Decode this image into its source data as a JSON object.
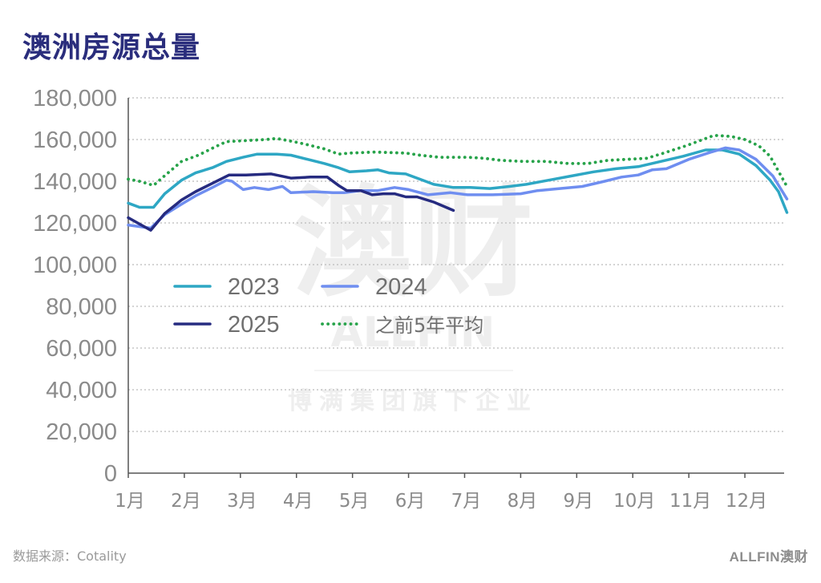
{
  "title": "澳洲房源总量",
  "source": "数据来源：Cotality",
  "logo": "ALLFIN澳财",
  "watermark": {
    "main": "澳财",
    "brand": "ALLFIN",
    "tagline": "博满集团旗下企业"
  },
  "colors": {
    "title": "#2a2d7c",
    "s2023": "#2ea7c4",
    "s2024": "#6f8ef0",
    "s2025": "#262b80",
    "avg5": "#27a34a",
    "grid": "#bbbbbb"
  },
  "chart_data": {
    "type": "line",
    "title": "澳洲房源总量",
    "ylim": [
      0,
      180000
    ],
    "yticks": [
      0,
      20000,
      40000,
      60000,
      80000,
      100000,
      120000,
      140000,
      160000,
      180000
    ],
    "ytick_labels": [
      "0",
      "20,000",
      "40,000",
      "60,000",
      "80,000",
      "100,000",
      "120,000",
      "140,000",
      "160,000",
      "180,000"
    ],
    "x_range": [
      0,
      11.7
    ],
    "xticks": [
      0,
      1,
      2,
      3,
      4,
      5,
      6,
      7,
      8,
      9,
      10,
      11
    ],
    "xtick_labels": [
      "1月",
      "2月",
      "3月",
      "4月",
      "5月",
      "6月",
      "7月",
      "8月",
      "9月",
      "10月",
      "11月",
      "12月"
    ],
    "grid": "horizontal dotted",
    "legend_position": "center-left",
    "series": [
      {
        "name": "2023",
        "style": "solid",
        "color": "#2ea7c4",
        "points": [
          [
            0,
            129500
          ],
          [
            0.2,
            127500
          ],
          [
            0.45,
            127500
          ],
          [
            0.65,
            134000
          ],
          [
            0.95,
            140500
          ],
          [
            1.2,
            144000
          ],
          [
            1.5,
            146500
          ],
          [
            1.75,
            149500
          ],
          [
            2.05,
            151500
          ],
          [
            2.3,
            153000
          ],
          [
            2.65,
            153000
          ],
          [
            2.9,
            152500
          ],
          [
            3.2,
            150500
          ],
          [
            3.5,
            148500
          ],
          [
            3.75,
            146500
          ],
          [
            3.95,
            144500
          ],
          [
            4.25,
            145000
          ],
          [
            4.45,
            145500
          ],
          [
            4.65,
            144000
          ],
          [
            4.95,
            143500
          ],
          [
            5.2,
            141000
          ],
          [
            5.45,
            138500
          ],
          [
            5.8,
            137000
          ],
          [
            6.1,
            137000
          ],
          [
            6.45,
            136500
          ],
          [
            6.8,
            137500
          ],
          [
            7.1,
            138500
          ],
          [
            7.5,
            140500
          ],
          [
            7.9,
            142500
          ],
          [
            8.3,
            144500
          ],
          [
            8.7,
            146000
          ],
          [
            9.1,
            147000
          ],
          [
            9.5,
            149500
          ],
          [
            9.9,
            152000
          ],
          [
            10.3,
            155000
          ],
          [
            10.6,
            155000
          ],
          [
            10.9,
            153000
          ],
          [
            11.2,
            147500
          ],
          [
            11.45,
            140500
          ],
          [
            11.6,
            135000
          ],
          [
            11.75,
            125000
          ]
        ]
      },
      {
        "name": "2024",
        "style": "solid",
        "color": "#6f8ef0",
        "points": [
          [
            0,
            119000
          ],
          [
            0.4,
            117500
          ],
          [
            0.65,
            124000
          ],
          [
            0.95,
            129000
          ],
          [
            1.2,
            133000
          ],
          [
            1.5,
            137000
          ],
          [
            1.75,
            140500
          ],
          [
            1.85,
            140000
          ],
          [
            2.05,
            136000
          ],
          [
            2.25,
            137000
          ],
          [
            2.5,
            136000
          ],
          [
            2.75,
            137500
          ],
          [
            2.9,
            134500
          ],
          [
            3.3,
            135000
          ],
          [
            3.65,
            134500
          ],
          [
            3.85,
            134500
          ],
          [
            4.15,
            135500
          ],
          [
            4.45,
            135500
          ],
          [
            4.75,
            137000
          ],
          [
            5.0,
            136000
          ],
          [
            5.35,
            133500
          ],
          [
            5.75,
            134500
          ],
          [
            6.05,
            133500
          ],
          [
            6.5,
            133500
          ],
          [
            7.0,
            134000
          ],
          [
            7.3,
            135500
          ],
          [
            7.7,
            136500
          ],
          [
            8.1,
            137500
          ],
          [
            8.5,
            140000
          ],
          [
            8.8,
            142000
          ],
          [
            9.1,
            143000
          ],
          [
            9.35,
            145500
          ],
          [
            9.6,
            146000
          ],
          [
            10.0,
            150500
          ],
          [
            10.4,
            154000
          ],
          [
            10.65,
            156000
          ],
          [
            10.9,
            155000
          ],
          [
            11.2,
            150500
          ],
          [
            11.5,
            142500
          ],
          [
            11.75,
            131500
          ]
        ]
      },
      {
        "name": "2025",
        "style": "solid",
        "color": "#262b80",
        "points": [
          [
            0,
            122500
          ],
          [
            0.4,
            116500
          ],
          [
            0.65,
            124500
          ],
          [
            0.95,
            131000
          ],
          [
            1.2,
            135000
          ],
          [
            1.5,
            139000
          ],
          [
            1.8,
            143000
          ],
          [
            2.1,
            143000
          ],
          [
            2.55,
            143500
          ],
          [
            2.9,
            141500
          ],
          [
            3.25,
            142000
          ],
          [
            3.55,
            142000
          ],
          [
            3.75,
            138000
          ],
          [
            3.9,
            135500
          ],
          [
            4.15,
            135500
          ],
          [
            4.35,
            133500
          ],
          [
            4.55,
            134000
          ],
          [
            4.75,
            134000
          ],
          [
            4.95,
            132500
          ],
          [
            5.15,
            132500
          ],
          [
            5.45,
            130000
          ],
          [
            5.8,
            126000
          ]
        ]
      },
      {
        "name": "之前5年平均",
        "style": "dotted",
        "color": "#27a34a",
        "points": [
          [
            0,
            141000
          ],
          [
            0.2,
            140000
          ],
          [
            0.45,
            138000
          ],
          [
            0.6,
            141500
          ],
          [
            0.95,
            149500
          ],
          [
            1.25,
            152500
          ],
          [
            1.55,
            156500
          ],
          [
            1.75,
            159000
          ],
          [
            2.1,
            159500
          ],
          [
            2.45,
            160000
          ],
          [
            2.65,
            160500
          ],
          [
            2.95,
            159000
          ],
          [
            3.2,
            157500
          ],
          [
            3.5,
            155500
          ],
          [
            3.75,
            153000
          ],
          [
            3.95,
            153500
          ],
          [
            4.4,
            154000
          ],
          [
            4.95,
            153500
          ],
          [
            5.2,
            152500
          ],
          [
            5.55,
            151500
          ],
          [
            6.05,
            151500
          ],
          [
            6.35,
            151000
          ],
          [
            6.65,
            150000
          ],
          [
            7.05,
            149500
          ],
          [
            7.45,
            149500
          ],
          [
            7.85,
            148500
          ],
          [
            8.2,
            148500
          ],
          [
            8.55,
            150000
          ],
          [
            8.9,
            150500
          ],
          [
            9.25,
            151000
          ],
          [
            9.55,
            153500
          ],
          [
            9.95,
            157000
          ],
          [
            10.3,
            160500
          ],
          [
            10.45,
            162000
          ],
          [
            10.75,
            161500
          ],
          [
            11.0,
            160000
          ],
          [
            11.25,
            157000
          ],
          [
            11.45,
            152000
          ],
          [
            11.75,
            137500
          ]
        ]
      }
    ]
  }
}
